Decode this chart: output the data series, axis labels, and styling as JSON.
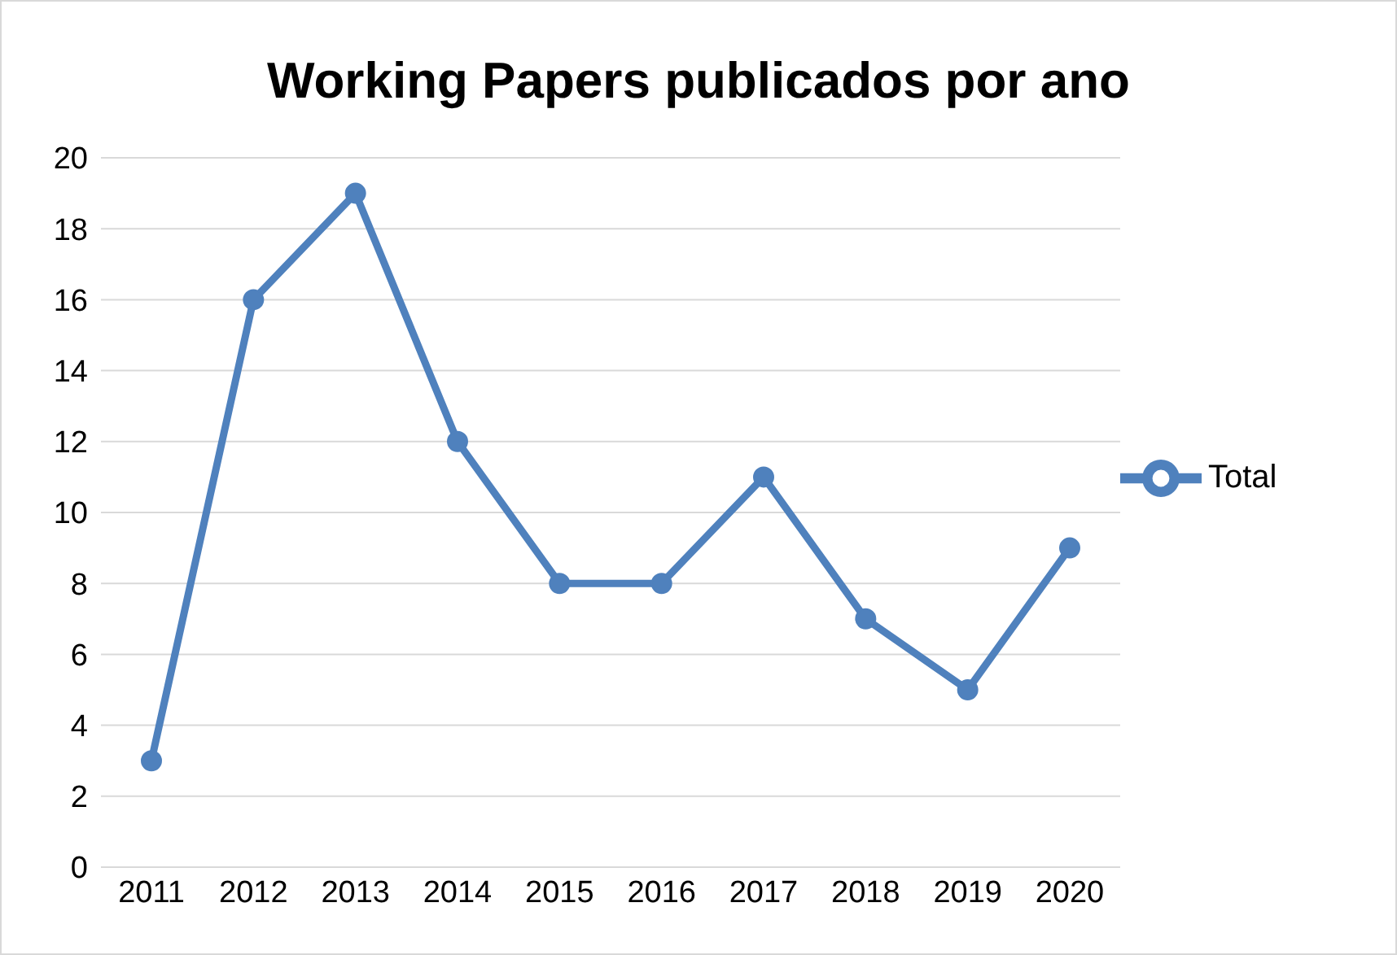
{
  "chart_data": {
    "type": "line",
    "title": "Working Papers publicados por ano",
    "categories": [
      "2011",
      "2012",
      "2013",
      "2014",
      "2015",
      "2016",
      "2017",
      "2018",
      "2019",
      "2020"
    ],
    "series": [
      {
        "name": "Total",
        "color": "#4f81bd",
        "values": [
          3,
          16,
          19,
          12,
          8,
          8,
          11,
          7,
          5,
          9
        ]
      }
    ],
    "ylim": [
      0,
      20
    ],
    "yticks": [
      0,
      2,
      4,
      6,
      8,
      10,
      12,
      14,
      16,
      18,
      20
    ],
    "grid": "y",
    "legend": "right",
    "marker": "circle",
    "line_style": "solid"
  }
}
